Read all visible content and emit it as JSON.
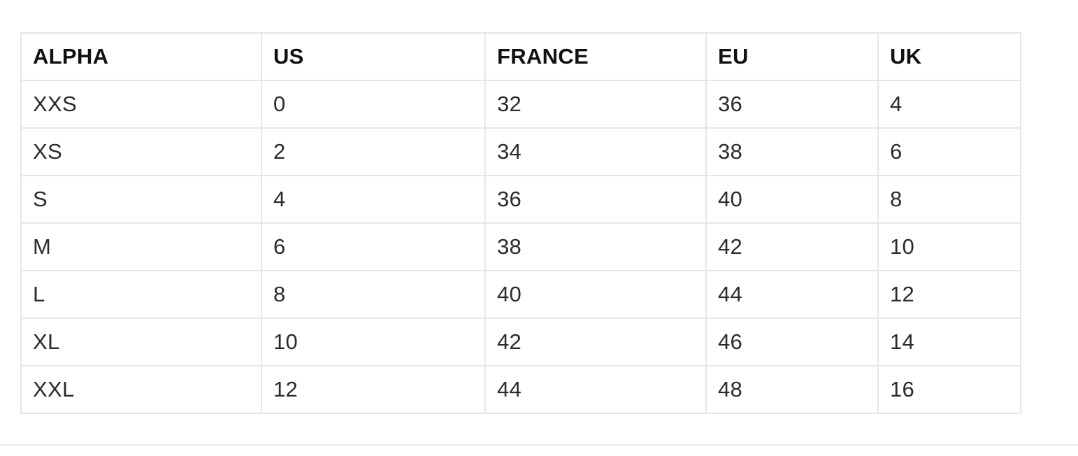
{
  "size_chart": {
    "headers": [
      "ALPHA",
      "US",
      "FRANCE",
      "EU",
      "UK"
    ],
    "rows": [
      [
        "XXS",
        "0",
        "32",
        "36",
        "4"
      ],
      [
        "XS",
        "2",
        "34",
        "38",
        "6"
      ],
      [
        "S",
        "4",
        "36",
        "40",
        "8"
      ],
      [
        "M",
        "6",
        "38",
        "42",
        "10"
      ],
      [
        "L",
        "8",
        "40",
        "44",
        "12"
      ],
      [
        "XL",
        "10",
        "42",
        "46",
        "14"
      ],
      [
        "XXL",
        "12",
        "44",
        "48",
        "16"
      ]
    ]
  },
  "colors": {
    "background": "#ffffff",
    "border": "#e6e6e2",
    "text": "#2b2b2b",
    "header_text": "#111111"
  }
}
